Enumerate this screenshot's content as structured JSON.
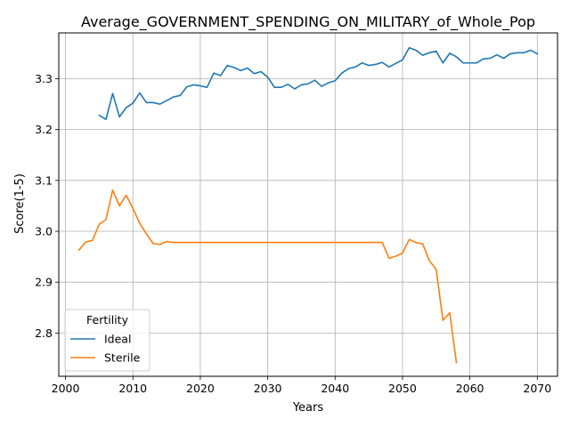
{
  "chart_data": {
    "type": "line",
    "title": "Average_GOVERNMENT_SPENDING_ON_MILITARY_of_Whole_Pop",
    "xlabel": "Years",
    "ylabel": "Score(1-5)",
    "xlim": [
      1999,
      2073
    ],
    "ylim": [
      2.715,
      3.39
    ],
    "x_ticks": [
      2000,
      2010,
      2020,
      2030,
      2040,
      2050,
      2060,
      2070
    ],
    "y_ticks": [
      2.8,
      2.9,
      3.0,
      3.1,
      3.2,
      3.3
    ],
    "grid": true,
    "legend": {
      "title": "Fertility",
      "placement": "lower-left"
    },
    "series": [
      {
        "name": "Ideal",
        "color": "#1f77b4",
        "x": [
          2005,
          2006,
          2007,
          2008,
          2009,
          2010,
          2011,
          2012,
          2013,
          2014,
          2015,
          2016,
          2017,
          2018,
          2019,
          2020,
          2021,
          2022,
          2023,
          2024,
          2025,
          2026,
          2027,
          2028,
          2029,
          2030,
          2031,
          2032,
          2033,
          2034,
          2035,
          2036,
          2037,
          2038,
          2039,
          2040,
          2041,
          2042,
          2043,
          2044,
          2045,
          2046,
          2047,
          2048,
          2049,
          2050,
          2051,
          2052,
          2053,
          2054,
          2055,
          2056,
          2057,
          2058,
          2059,
          2060,
          2061,
          2062,
          2063,
          2064,
          2065,
          2066,
          2067,
          2068,
          2069,
          2070
        ],
        "y": [
          3.228,
          3.22,
          3.271,
          3.225,
          3.243,
          3.252,
          3.272,
          3.253,
          3.253,
          3.25,
          3.257,
          3.264,
          3.267,
          3.284,
          3.288,
          3.286,
          3.283,
          3.311,
          3.306,
          3.326,
          3.322,
          3.316,
          3.321,
          3.31,
          3.314,
          3.303,
          3.283,
          3.283,
          3.289,
          3.28,
          3.288,
          3.29,
          3.297,
          3.285,
          3.292,
          3.296,
          3.311,
          3.32,
          3.323,
          3.331,
          3.326,
          3.328,
          3.332,
          3.323,
          3.33,
          3.337,
          3.361,
          3.356,
          3.346,
          3.351,
          3.354,
          3.331,
          3.35,
          3.343,
          3.331,
          3.331,
          3.331,
          3.339,
          3.34,
          3.347,
          3.34,
          3.349,
          3.351,
          3.351,
          3.356,
          3.349
        ]
      },
      {
        "name": "Sterile",
        "color": "#ff7f0e",
        "x": [
          2002,
          2003,
          2004,
          2005,
          2006,
          2007,
          2008,
          2009,
          2010,
          2011,
          2012,
          2013,
          2014,
          2015,
          2016,
          2017,
          2018,
          2019,
          2020,
          2021,
          2022,
          2023,
          2024,
          2025,
          2026,
          2027,
          2028,
          2029,
          2030,
          2031,
          2032,
          2033,
          2034,
          2035,
          2036,
          2037,
          2038,
          2039,
          2040,
          2041,
          2042,
          2043,
          2044,
          2045,
          2046,
          2047,
          2048,
          2049,
          2050,
          2051,
          2052,
          2053,
          2054,
          2055,
          2056,
          2057,
          2058
        ],
        "y": [
          2.963,
          2.979,
          2.982,
          3.014,
          3.023,
          3.081,
          3.05,
          3.071,
          3.045,
          3.016,
          2.995,
          2.976,
          2.974,
          2.98,
          2.978,
          2.978,
          2.978,
          2.978,
          2.978,
          2.978,
          2.978,
          2.978,
          2.978,
          2.978,
          2.978,
          2.978,
          2.978,
          2.978,
          2.978,
          2.978,
          2.978,
          2.978,
          2.978,
          2.978,
          2.978,
          2.978,
          2.978,
          2.978,
          2.978,
          2.978,
          2.978,
          2.978,
          2.978,
          2.978,
          2.978,
          2.978,
          2.947,
          2.951,
          2.957,
          2.984,
          2.978,
          2.975,
          2.942,
          2.925,
          2.825,
          2.84,
          2.742
        ]
      }
    ]
  }
}
